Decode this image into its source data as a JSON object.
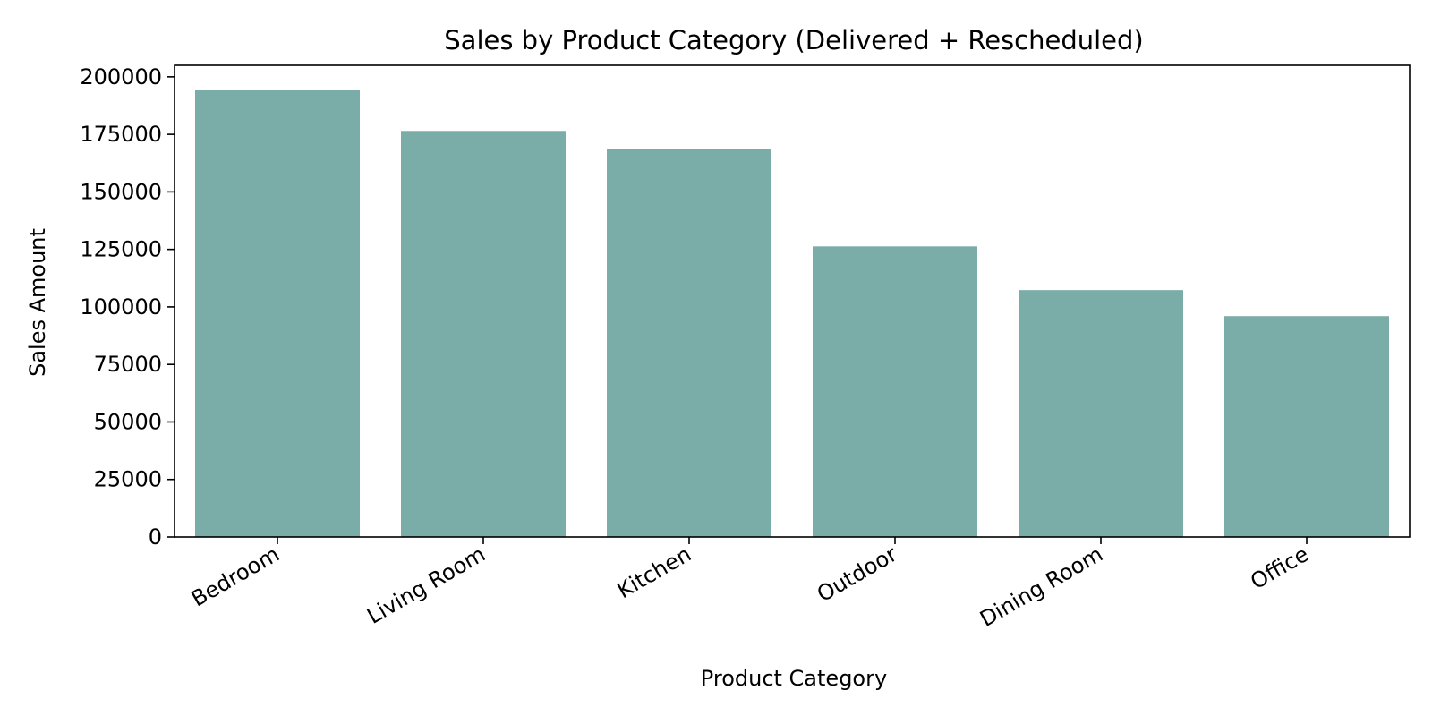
{
  "chart_data": {
    "type": "bar",
    "title": "Sales by Product Category (Delivered + Rescheduled)",
    "xlabel": "Product Category",
    "ylabel": "Sales Amount",
    "categories": [
      "Bedroom",
      "Living Room",
      "Kitchen",
      "Outdoor",
      "Dining Room",
      "Office"
    ],
    "values": [
      194500,
      176500,
      168700,
      126300,
      107300,
      96000
    ],
    "ylim": [
      0,
      205000
    ],
    "yticks": [
      0,
      25000,
      50000,
      75000,
      100000,
      125000,
      150000,
      175000,
      200000
    ],
    "grid": false,
    "legend": "none",
    "bar_color": "#7aaca8"
  }
}
